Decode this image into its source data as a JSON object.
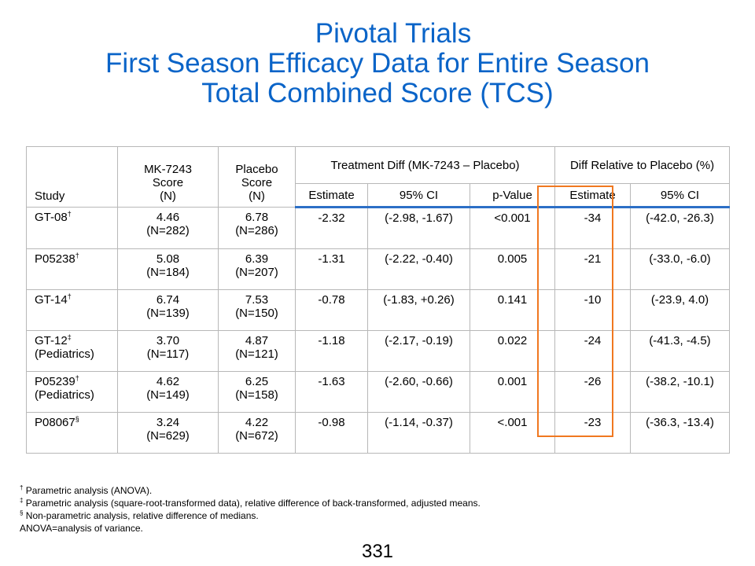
{
  "title": {
    "line1": "Pivotal Trials",
    "line2": "First Season Efficacy Data for Entire Season",
    "line3": "Total Combined Score (TCS)"
  },
  "table": {
    "headers": {
      "study": "Study",
      "mk_line1": "MK-7243",
      "mk_line2": "Score",
      "mk_line3": "(N)",
      "placebo_line1": "Placebo",
      "placebo_line2": "Score",
      "placebo_line3": "(N)",
      "treatment_diff": "Treatment Diff (MK-7243 – Placebo)",
      "diff_relative": "Diff Relative to Placebo (%)",
      "estimate": "Estimate",
      "ci95": "95% CI",
      "pvalue": "p-Value",
      "rel_estimate": "Estimate",
      "rel_ci95": "95% CI"
    },
    "rows": [
      {
        "study": "GT-08",
        "mark": "†",
        "study_sub": "",
        "mk_score": "4.46",
        "mk_n": "(N=282)",
        "pl_score": "6.78",
        "pl_n": "(N=286)",
        "estimate": "-2.32",
        "ci": "(-2.98, -1.67)",
        "p": "<0.001",
        "rel_estimate": "-34",
        "rel_ci": "(-42.0, -26.3)"
      },
      {
        "study": "P05238",
        "mark": "†",
        "study_sub": "",
        "mk_score": "5.08",
        "mk_n": "(N=184)",
        "pl_score": "6.39",
        "pl_n": "(N=207)",
        "estimate": "-1.31",
        "ci": "(-2.22, -0.40)",
        "p": "0.005",
        "rel_estimate": "-21",
        "rel_ci": "(-33.0, -6.0)"
      },
      {
        "study": "GT-14",
        "mark": "†",
        "study_sub": "",
        "mk_score": "6.74",
        "mk_n": "(N=139)",
        "pl_score": "7.53",
        "pl_n": "(N=150)",
        "estimate": "-0.78",
        "ci": "(-1.83, +0.26)",
        "p": "0.141",
        "rel_estimate": "-10",
        "rel_ci": "(-23.9, 4.0)"
      },
      {
        "study": "GT-12",
        "mark": "‡",
        "study_sub": "(Pediatrics)",
        "mk_score": "3.70",
        "mk_n": "(N=117)",
        "pl_score": "4.87",
        "pl_n": "(N=121)",
        "estimate": "-1.18",
        "ci": "(-2.17, -0.19)",
        "p": "0.022",
        "rel_estimate": "-24",
        "rel_ci": "(-41.3, -4.5)"
      },
      {
        "study": "P05239",
        "mark": "†",
        "study_sub": "(Pediatrics)",
        "mk_score": "4.62",
        "mk_n": "(N=149)",
        "pl_score": "6.25",
        "pl_n": "(N=158)",
        "estimate": "-1.63",
        "ci": "(-2.60, -0.66)",
        "p": "0.001",
        "rel_estimate": "-26",
        "rel_ci": "(-38.2, -10.1)"
      },
      {
        "study": "P08067",
        "mark": "§",
        "study_sub": "",
        "mk_score": "3.24",
        "mk_n": "(N=629)",
        "pl_score": "4.22",
        "pl_n": "(N=672)",
        "estimate": "-0.98",
        "ci": "(-1.14, -0.37)",
        "p": "<.001",
        "rel_estimate": "-23",
        "rel_ci": "(-36.3, -13.4)"
      }
    ]
  },
  "footnotes": [
    {
      "mark": "†",
      "text": " Parametric analysis (ANOVA)."
    },
    {
      "mark": "‡",
      "text": " Parametric analysis (square-root-transformed data), relative difference of back-transformed, adjusted means."
    },
    {
      "mark": "§",
      "text": " Non-parametric analysis, relative difference of medians."
    },
    {
      "mark": "",
      "text": "ANOVA=analysis of variance."
    }
  ],
  "page_number": "331",
  "colors": {
    "title": "#0a64c8",
    "header_rule": "#2c6fc6",
    "highlight_box": "#f07820",
    "grid": "#b8b8b8"
  }
}
